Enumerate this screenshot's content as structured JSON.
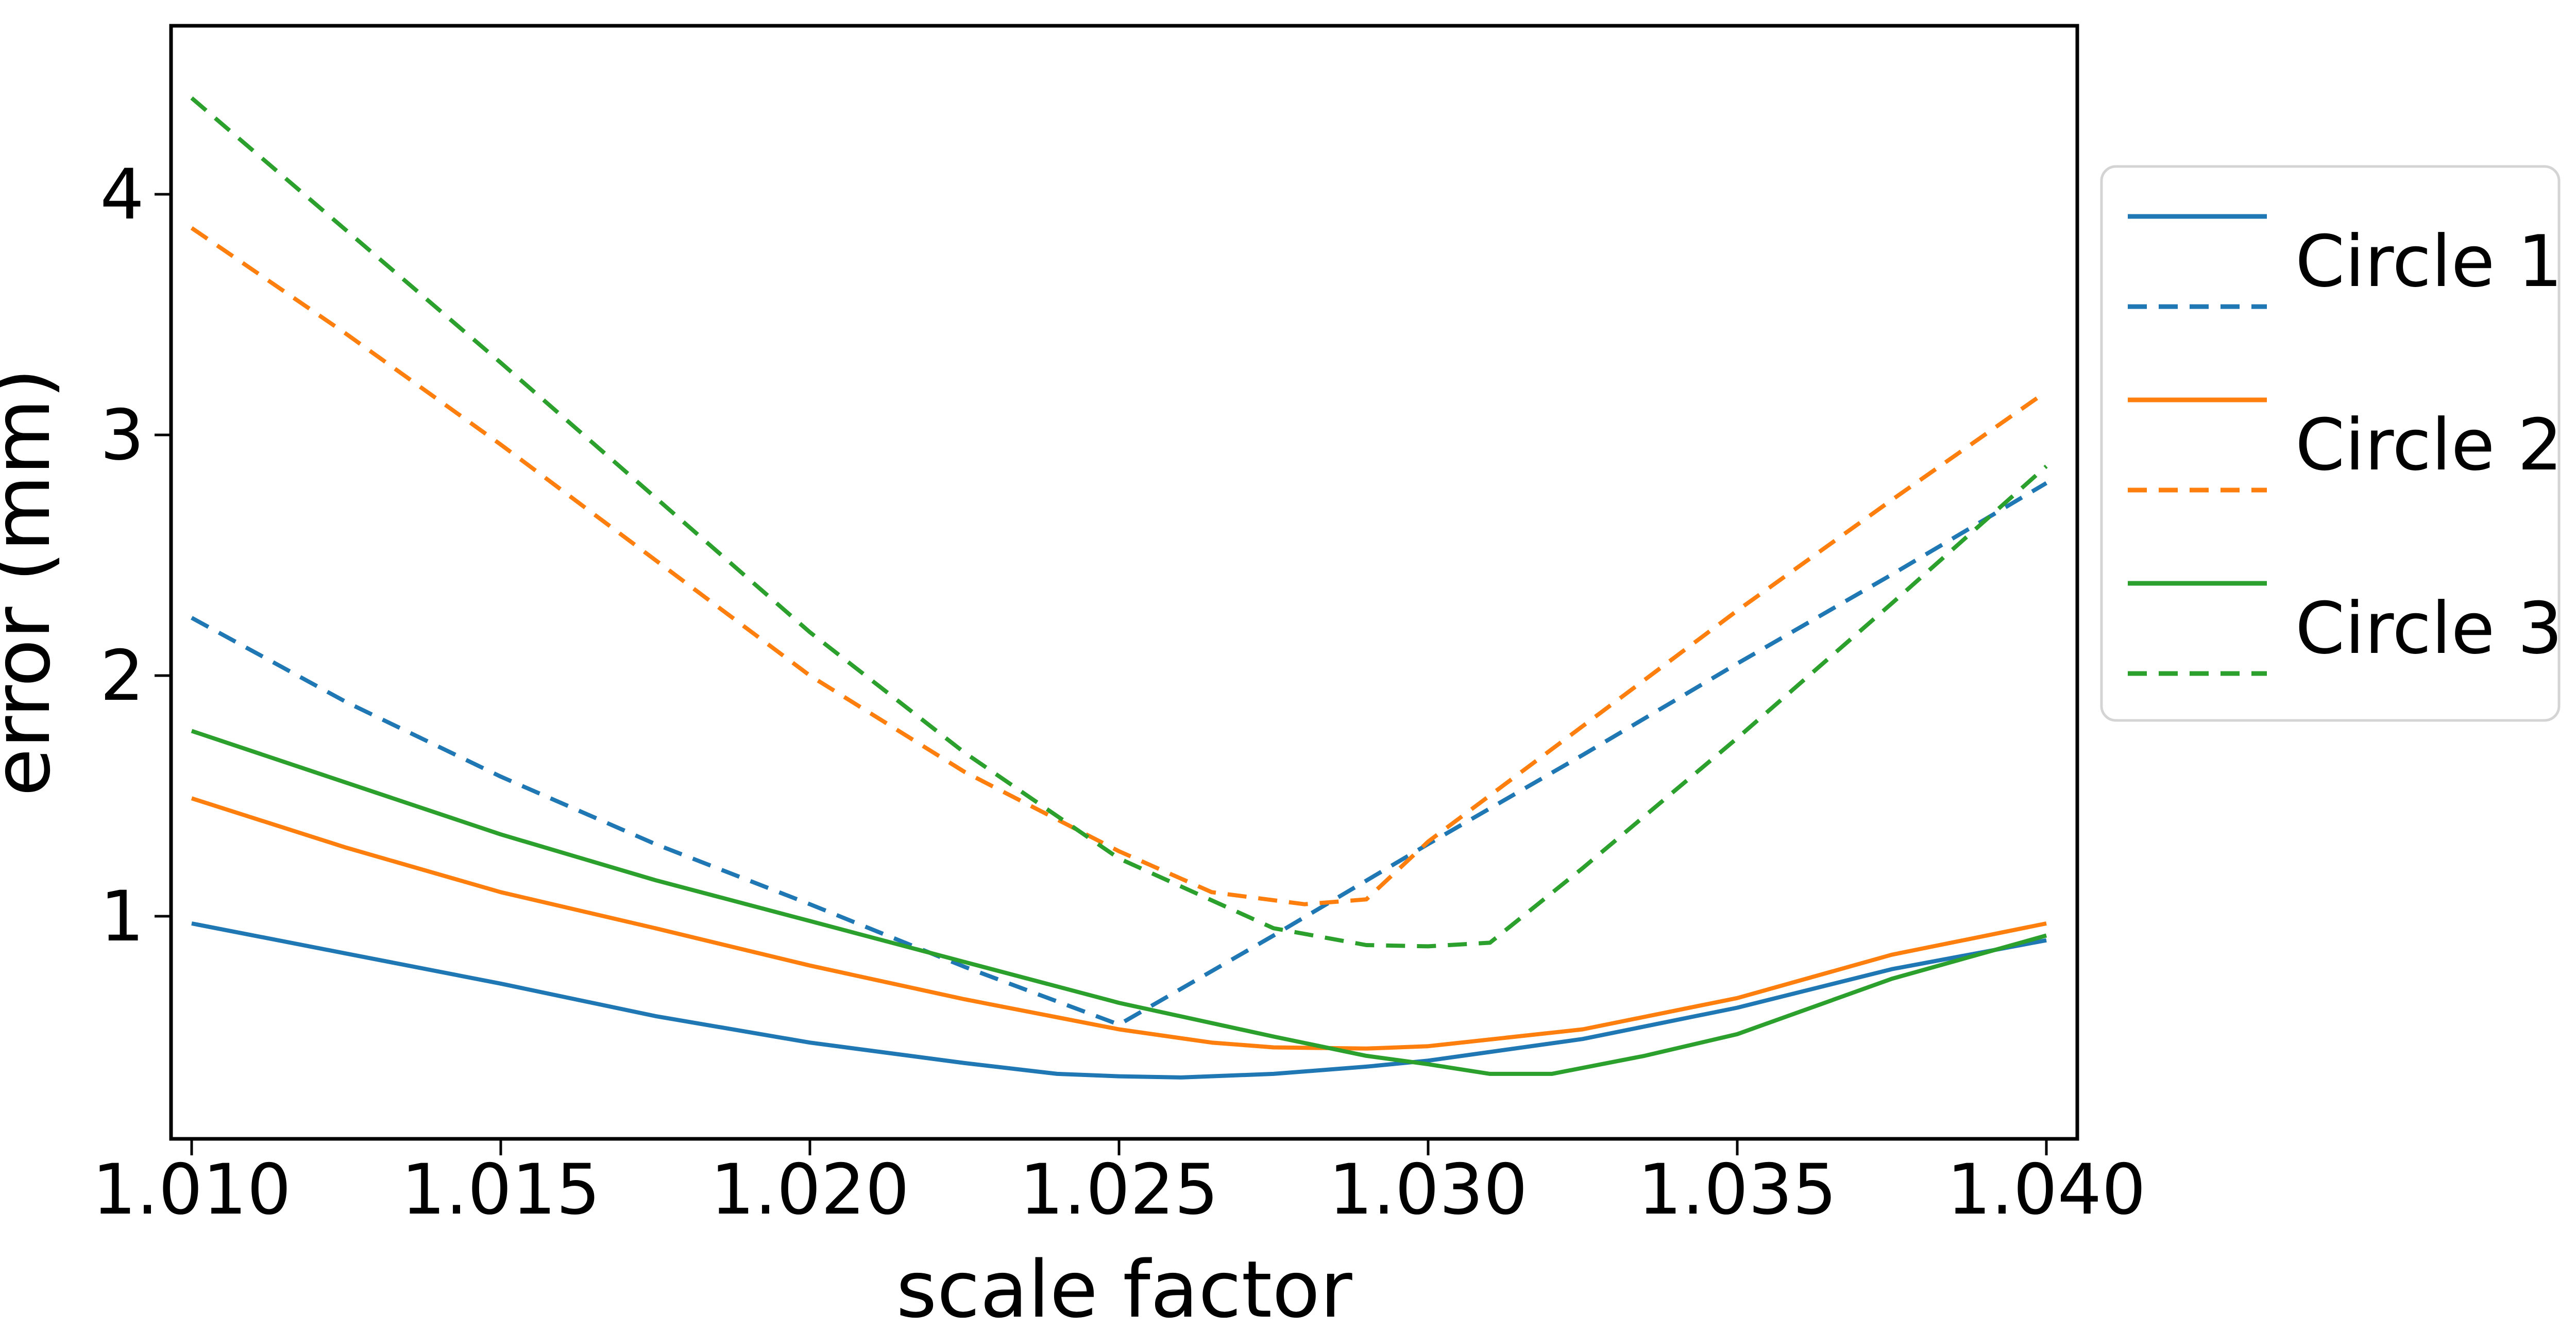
{
  "chart_data": {
    "type": "line",
    "title": "",
    "xlabel": "scale factor",
    "ylabel": "error (mm)",
    "xlim": [
      1.0097,
      1.0405
    ],
    "ylim": [
      0.07,
      4.7
    ],
    "grid": false,
    "legend_position": "outside-right",
    "x_ticks": [
      1.01,
      1.015,
      1.02,
      1.025,
      1.03,
      1.035,
      1.04
    ],
    "x_tick_labels": [
      "1.010",
      "1.015",
      "1.020",
      "1.025",
      "1.030",
      "1.035",
      "1.040"
    ],
    "y_ticks": [
      1,
      2,
      3,
      4
    ],
    "y_tick_labels": [
      "1",
      "2",
      "3",
      "4"
    ],
    "series": [
      {
        "name": "circle-1-solid",
        "legend_label": "Circle 1",
        "color": "#1f77b4",
        "style": "solid",
        "points": [
          [
            1.01,
            0.97
          ],
          [
            1.0125,
            0.845
          ],
          [
            1.015,
            0.72
          ],
          [
            1.0175,
            0.585
          ],
          [
            1.02,
            0.475
          ],
          [
            1.0225,
            0.39
          ],
          [
            1.024,
            0.345
          ],
          [
            1.025,
            0.335
          ],
          [
            1.026,
            0.33
          ],
          [
            1.0275,
            0.345
          ],
          [
            1.029,
            0.375
          ],
          [
            1.03,
            0.4
          ],
          [
            1.0325,
            0.49
          ],
          [
            1.035,
            0.62
          ],
          [
            1.0375,
            0.78
          ],
          [
            1.04,
            0.9
          ]
        ]
      },
      {
        "name": "circle-1-dashed",
        "legend_label": "Circle 1",
        "color": "#1f77b4",
        "style": "dashed",
        "points": [
          [
            1.01,
            2.24
          ],
          [
            1.0125,
            1.89
          ],
          [
            1.015,
            1.58
          ],
          [
            1.0175,
            1.3
          ],
          [
            1.02,
            1.05
          ],
          [
            1.0225,
            0.79
          ],
          [
            1.025,
            0.55
          ],
          [
            1.0275,
            0.92
          ],
          [
            1.03,
            1.3
          ],
          [
            1.0325,
            1.67
          ],
          [
            1.035,
            2.05
          ],
          [
            1.0375,
            2.42
          ],
          [
            1.04,
            2.8
          ]
        ]
      },
      {
        "name": "circle-2-solid",
        "legend_label": "Circle 2",
        "color": "#ff7f0e",
        "style": "solid",
        "points": [
          [
            1.01,
            1.49
          ],
          [
            1.0125,
            1.285
          ],
          [
            1.015,
            1.1
          ],
          [
            1.0175,
            0.95
          ],
          [
            1.02,
            0.795
          ],
          [
            1.0225,
            0.655
          ],
          [
            1.025,
            0.53
          ],
          [
            1.0265,
            0.475
          ],
          [
            1.0275,
            0.455
          ],
          [
            1.029,
            0.45
          ],
          [
            1.03,
            0.46
          ],
          [
            1.0325,
            0.53
          ],
          [
            1.035,
            0.66
          ],
          [
            1.0375,
            0.84
          ],
          [
            1.04,
            0.97
          ]
        ]
      },
      {
        "name": "circle-2-dashed",
        "legend_label": "Circle 2",
        "color": "#ff7f0e",
        "style": "dashed",
        "points": [
          [
            1.01,
            3.86
          ],
          [
            1.0125,
            3.42
          ],
          [
            1.015,
            2.96
          ],
          [
            1.0175,
            2.48
          ],
          [
            1.02,
            2.0
          ],
          [
            1.0225,
            1.6
          ],
          [
            1.025,
            1.27
          ],
          [
            1.0265,
            1.1
          ],
          [
            1.028,
            1.05
          ],
          [
            1.029,
            1.07
          ],
          [
            1.03,
            1.31
          ],
          [
            1.0325,
            1.79
          ],
          [
            1.035,
            2.27
          ],
          [
            1.0375,
            2.73
          ],
          [
            1.04,
            3.18
          ]
        ]
      },
      {
        "name": "circle-3-solid",
        "legend_label": "Circle 3",
        "color": "#2ca02c",
        "style": "solid",
        "points": [
          [
            1.01,
            1.77
          ],
          [
            1.0125,
            1.555
          ],
          [
            1.015,
            1.34
          ],
          [
            1.0175,
            1.15
          ],
          [
            1.02,
            0.98
          ],
          [
            1.0225,
            0.81
          ],
          [
            1.025,
            0.64
          ],
          [
            1.0275,
            0.5
          ],
          [
            1.029,
            0.42
          ],
          [
            1.03,
            0.385
          ],
          [
            1.031,
            0.345
          ],
          [
            1.032,
            0.345
          ],
          [
            1.0335,
            0.42
          ],
          [
            1.035,
            0.51
          ],
          [
            1.0375,
            0.74
          ],
          [
            1.04,
            0.92
          ]
        ]
      },
      {
        "name": "circle-3-dashed",
        "legend_label": "Circle 3",
        "color": "#2ca02c",
        "style": "dashed",
        "points": [
          [
            1.01,
            4.4
          ],
          [
            1.0125,
            3.85
          ],
          [
            1.015,
            3.3
          ],
          [
            1.0175,
            2.74
          ],
          [
            1.02,
            2.18
          ],
          [
            1.0225,
            1.68
          ],
          [
            1.025,
            1.24
          ],
          [
            1.0275,
            0.95
          ],
          [
            1.029,
            0.88
          ],
          [
            1.03,
            0.875
          ],
          [
            1.031,
            0.89
          ],
          [
            1.0325,
            1.2
          ],
          [
            1.035,
            1.74
          ],
          [
            1.0375,
            2.3
          ],
          [
            1.04,
            2.87
          ]
        ]
      }
    ]
  },
  "legend": {
    "entries": [
      {
        "label": "Circle 1",
        "color": "#1f77b4",
        "styles": [
          "solid",
          "dashed"
        ]
      },
      {
        "label": "Circle 2",
        "color": "#ff7f0e",
        "styles": [
          "solid",
          "dashed"
        ]
      },
      {
        "label": "Circle 3",
        "color": "#2ca02c",
        "styles": [
          "solid",
          "dashed"
        ]
      }
    ]
  },
  "colors": {
    "blue": "#1f77b4",
    "orange": "#ff7f0e",
    "green": "#2ca02c",
    "axis": "#000000",
    "legend_border": "#d4d4d4",
    "background": "#ffffff"
  }
}
